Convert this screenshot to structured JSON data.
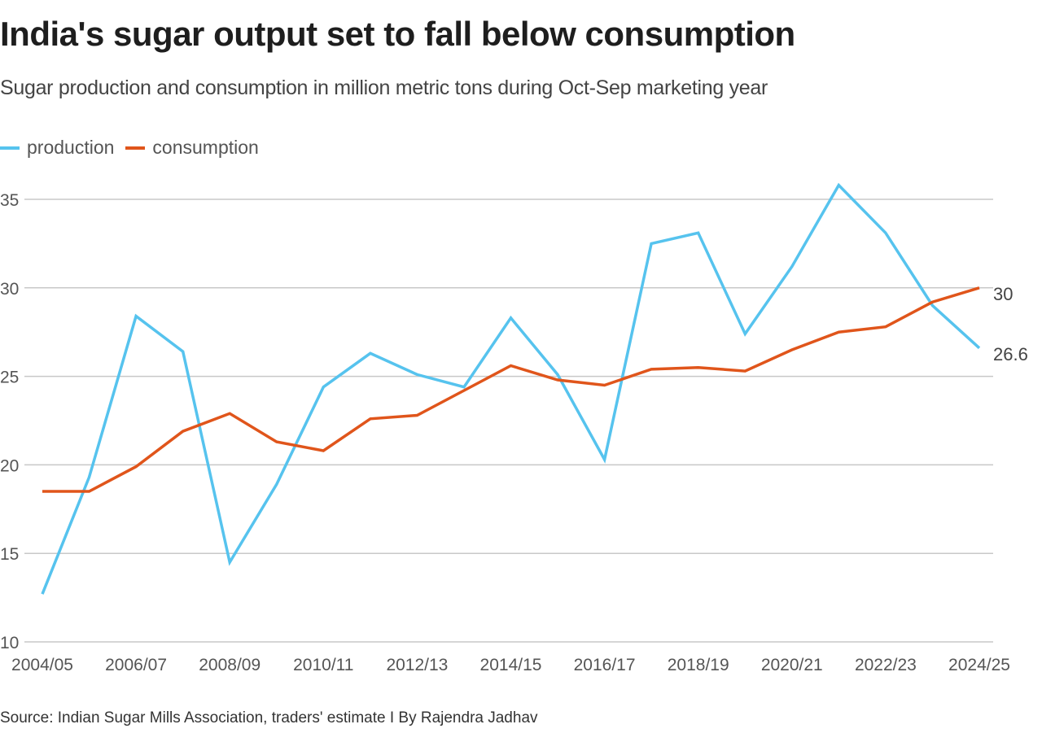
{
  "header": {
    "title": "India's sugar output set to fall below consumption",
    "subtitle": "Sugar production and consumption in million metric tons during Oct-Sep marketing year"
  },
  "legend": [
    {
      "label": "production",
      "color": "#56c3ee"
    },
    {
      "label": "consumption",
      "color": "#e0551b"
    }
  ],
  "footer": {
    "source": "Source: Indian Sugar Mills Association, traders' estimate I By Rajendra Jadhav"
  },
  "chart_data": {
    "type": "line",
    "title": "India's sugar output set to fall below consumption",
    "subtitle": "Sugar production and consumption in million metric tons during Oct-Sep marketing year",
    "xlabel": "",
    "ylabel": "",
    "x": [
      "2004/05",
      "2005/06",
      "2006/07",
      "2007/08",
      "2008/09",
      "2009/10",
      "2010/11",
      "2011/12",
      "2012/13",
      "2013/14",
      "2014/15",
      "2015/16",
      "2016/17",
      "2017/18",
      "2018/19",
      "2019/20",
      "2020/21",
      "2021/22",
      "2022/23",
      "2023/24",
      "2024/25"
    ],
    "x_tick_labels": [
      "2004/05",
      "2006/07",
      "2008/09",
      "2010/11",
      "2012/13",
      "2014/15",
      "2016/17",
      "2018/19",
      "2020/21",
      "2022/23",
      "2024/25"
    ],
    "y_ticks": [
      10,
      15,
      20,
      25,
      30,
      35
    ],
    "ylim": [
      10,
      35
    ],
    "grid": true,
    "legend_position": "top-left",
    "series": [
      {
        "name": "production",
        "color": "#56c3ee",
        "values": [
          12.7,
          19.3,
          28.4,
          26.4,
          14.5,
          18.9,
          24.4,
          26.3,
          25.1,
          24.4,
          28.3,
          25.1,
          20.3,
          32.5,
          33.1,
          27.4,
          31.2,
          35.8,
          33.1,
          29.0,
          26.6
        ],
        "end_label": "26.6"
      },
      {
        "name": "consumption",
        "color": "#e0551b",
        "values": [
          18.5,
          18.5,
          19.9,
          21.9,
          22.9,
          21.3,
          20.8,
          22.6,
          22.8,
          24.2,
          25.6,
          24.8,
          24.5,
          25.4,
          25.5,
          25.3,
          26.5,
          27.5,
          27.8,
          29.2,
          30.0
        ],
        "end_label": "30"
      }
    ],
    "annotations": [
      "30",
      "26.6"
    ]
  }
}
